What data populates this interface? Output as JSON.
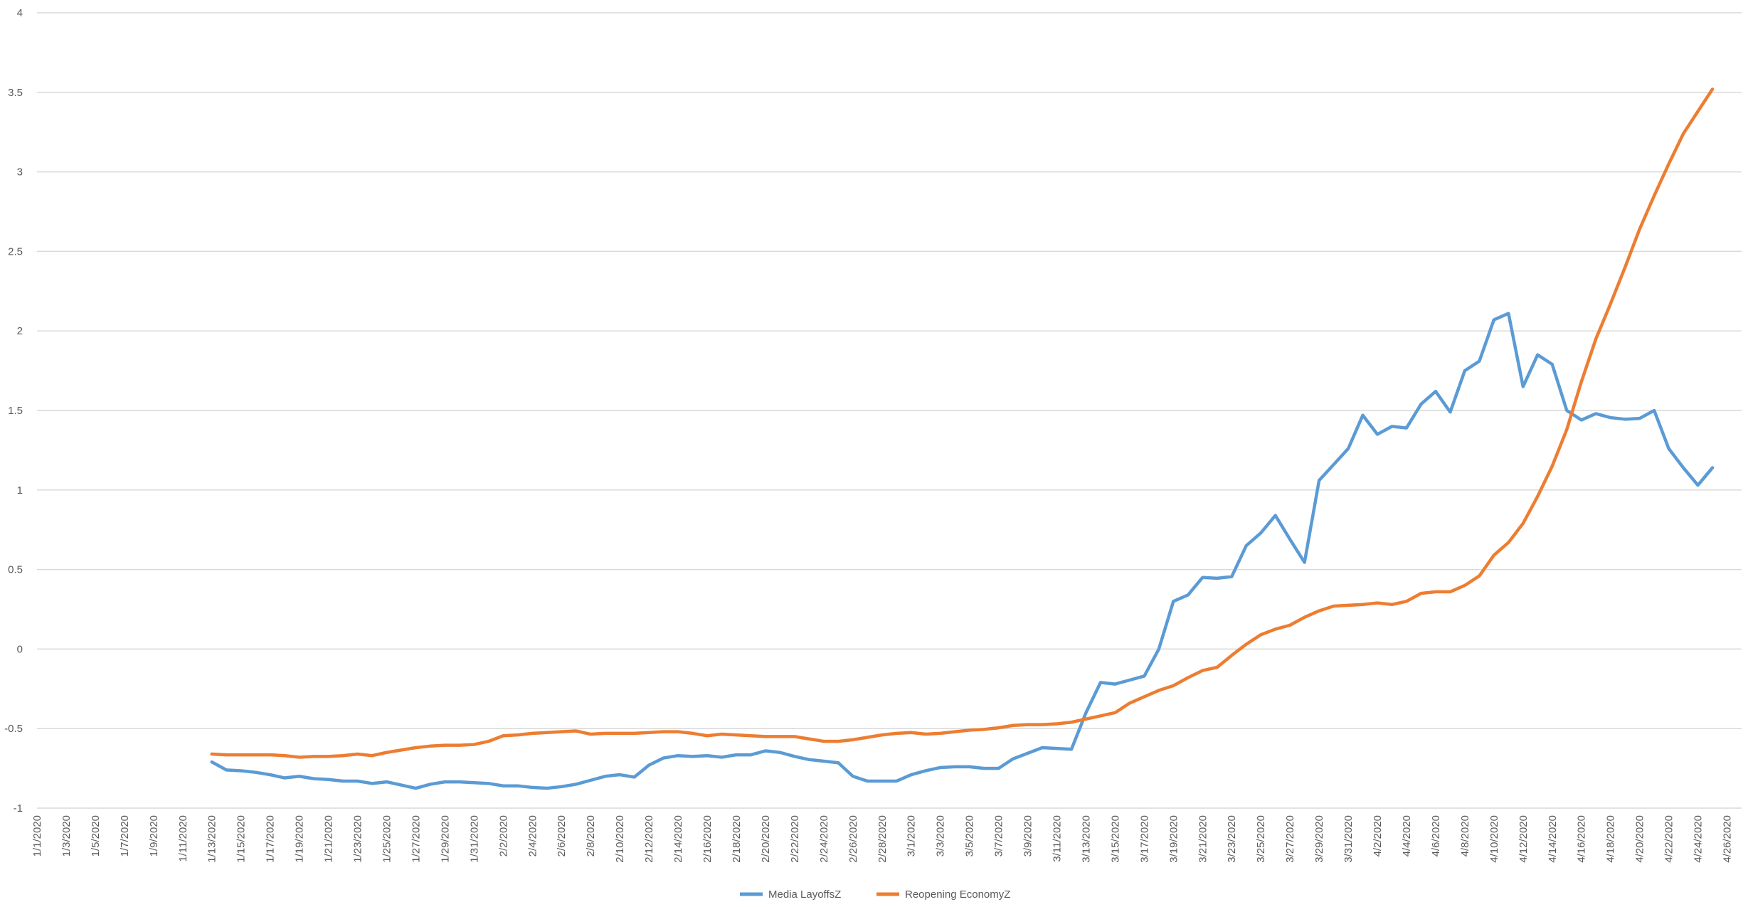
{
  "colors": {
    "series1": "#5b9bd5",
    "series2": "#ed7d31",
    "grid": "#d9d9d9",
    "text": "#595959"
  },
  "chart_data": {
    "type": "line",
    "title": "",
    "xlabel": "",
    "ylabel": "",
    "ylim": [
      -1,
      4
    ],
    "yticks": [
      -1,
      -0.5,
      0,
      0.5,
      1,
      1.5,
      2,
      2.5,
      3,
      3.5,
      4
    ],
    "ytick_labels": [
      "-1",
      "-0.5",
      "0",
      "0.5",
      "1",
      "1.5",
      "2",
      "2.5",
      "3",
      "3.5",
      "4"
    ],
    "grid": true,
    "legend_position": "bottom",
    "x_start": "2020-01-01",
    "x_end": "2020-04-27",
    "x_tick_labels": [
      "1/1/2020",
      "1/3/2020",
      "1/5/2020",
      "1/7/2020",
      "1/9/2020",
      "1/11/2020",
      "1/13/2020",
      "1/15/2020",
      "1/17/2020",
      "1/19/2020",
      "1/21/2020",
      "1/23/2020",
      "1/25/2020",
      "1/27/2020",
      "1/29/2020",
      "1/31/2020",
      "2/2/2020",
      "2/4/2020",
      "2/6/2020",
      "2/8/2020",
      "2/10/2020",
      "2/12/2020",
      "2/14/2020",
      "2/16/2020",
      "2/18/2020",
      "2/20/2020",
      "2/22/2020",
      "2/24/2020",
      "2/26/2020",
      "2/28/2020",
      "3/1/2020",
      "3/3/2020",
      "3/5/2020",
      "3/7/2020",
      "3/9/2020",
      "3/11/2020",
      "3/13/2020",
      "3/15/2020",
      "3/17/2020",
      "3/19/2020",
      "3/21/2020",
      "3/23/2020",
      "3/25/2020",
      "3/27/2020",
      "3/29/2020",
      "3/31/2020",
      "4/2/2020",
      "4/4/2020",
      "4/6/2020",
      "4/8/2020",
      "4/10/2020",
      "4/12/2020",
      "4/14/2020",
      "4/16/2020",
      "4/18/2020",
      "4/20/2020",
      "4/22/2020",
      "4/24/2020",
      "4/26/2020"
    ],
    "series": [
      {
        "name": "Media LayoffsZ",
        "color": "#5b9bd5",
        "start_date": "2020-01-13",
        "values": [
          -0.71,
          -0.76,
          -0.765,
          -0.775,
          -0.79,
          -0.81,
          -0.8,
          -0.815,
          -0.82,
          -0.83,
          -0.83,
          -0.845,
          -0.835,
          -0.855,
          -0.875,
          -0.85,
          -0.835,
          -0.835,
          -0.84,
          -0.845,
          -0.86,
          -0.86,
          -0.87,
          -0.875,
          -0.865,
          -0.85,
          -0.825,
          -0.8,
          -0.79,
          -0.805,
          -0.73,
          -0.685,
          -0.67,
          -0.675,
          -0.67,
          -0.68,
          -0.665,
          -0.665,
          -0.64,
          -0.65,
          -0.675,
          -0.695,
          -0.705,
          -0.715,
          -0.8,
          -0.83,
          -0.83,
          -0.83,
          -0.79,
          -0.765,
          -0.745,
          -0.74,
          -0.74,
          -0.75,
          -0.75,
          -0.69,
          -0.655,
          -0.62,
          -0.625,
          -0.63,
          -0.4,
          -0.21,
          -0.22,
          -0.195,
          -0.17,
          0.0,
          0.3,
          0.34,
          0.45,
          0.445,
          0.455,
          0.65,
          0.73,
          0.84,
          0.69,
          0.545,
          1.06,
          1.16,
          1.26,
          1.47,
          1.35,
          1.4,
          1.39,
          1.54,
          1.62,
          1.49,
          1.75,
          1.81,
          2.07,
          2.11,
          1.65,
          1.85,
          1.79,
          1.5,
          1.44,
          1.48,
          1.455,
          1.445,
          1.45,
          1.5,
          1.26,
          1.14,
          1.03,
          1.14
        ]
      },
      {
        "name": "Reopening EconomyZ",
        "color": "#ed7d31",
        "start_date": "2020-01-13",
        "values": [
          -0.66,
          -0.665,
          -0.665,
          -0.665,
          -0.665,
          -0.67,
          -0.68,
          -0.675,
          -0.675,
          -0.67,
          -0.66,
          -0.67,
          -0.65,
          -0.635,
          -0.62,
          -0.61,
          -0.605,
          -0.605,
          -0.6,
          -0.58,
          -0.545,
          -0.54,
          -0.53,
          -0.525,
          -0.52,
          -0.515,
          -0.535,
          -0.53,
          -0.53,
          -0.53,
          -0.525,
          -0.52,
          -0.52,
          -0.53,
          -0.545,
          -0.535,
          -0.54,
          -0.545,
          -0.55,
          -0.55,
          -0.55,
          -0.565,
          -0.58,
          -0.58,
          -0.57,
          -0.555,
          -0.54,
          -0.53,
          -0.525,
          -0.535,
          -0.53,
          -0.52,
          -0.51,
          -0.505,
          -0.495,
          -0.48,
          -0.475,
          -0.475,
          -0.47,
          -0.46,
          -0.44,
          -0.42,
          -0.4,
          -0.34,
          -0.3,
          -0.26,
          -0.23,
          -0.18,
          -0.135,
          -0.115,
          -0.04,
          0.03,
          0.09,
          0.125,
          0.15,
          0.2,
          0.24,
          0.27,
          0.275,
          0.28,
          0.29,
          0.28,
          0.3,
          0.35,
          0.36,
          0.36,
          0.4,
          0.46,
          0.59,
          0.67,
          0.79,
          0.96,
          1.15,
          1.38,
          1.68,
          1.95,
          2.17,
          2.4,
          2.64,
          2.85,
          3.05,
          3.24,
          3.38,
          3.52
        ]
      }
    ]
  }
}
